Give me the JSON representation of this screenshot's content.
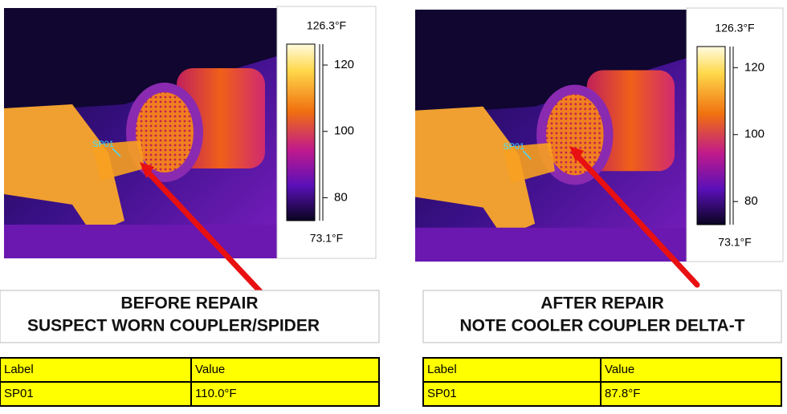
{
  "panels": [
    {
      "image": {
        "spot": "SP01"
      },
      "scale": {
        "max": 126.3,
        "max_label": "126.3°F",
        "min": 73.1,
        "min_label": "73.1°F",
        "ticks": [
          80,
          100,
          120
        ]
      },
      "caption": [
        "BEFORE REPAIR",
        "SUSPECT WORN COUPLER/SPIDER"
      ],
      "table": {
        "header": [
          "Label",
          "Value"
        ],
        "rows": [
          [
            "SP01",
            "110.0°F"
          ]
        ]
      }
    },
    {
      "image": {
        "spot": "SP01"
      },
      "scale": {
        "max": 126.3,
        "max_label": "126.3°F",
        "min": 73.1,
        "min_label": "73.1°F",
        "ticks": [
          80,
          100,
          120
        ]
      },
      "caption": [
        "AFTER REPAIR",
        "NOTE COOLER COUPLER DELTA-T"
      ],
      "table": {
        "header": [
          "Label",
          "Value"
        ],
        "rows": [
          [
            "SP01",
            "87.8°F"
          ]
        ]
      }
    }
  ]
}
